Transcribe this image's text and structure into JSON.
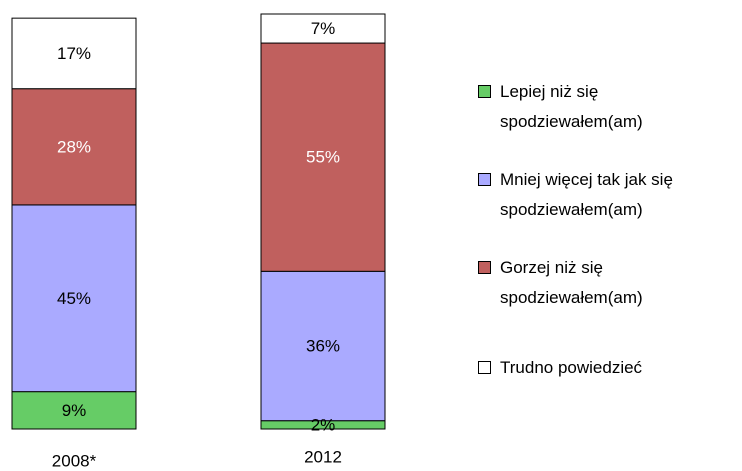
{
  "chart_data": {
    "type": "stacked_bar",
    "categories": [
      "2008*",
      "2012"
    ],
    "series": [
      {
        "name": "Lepiej niż się spodziewałem(am)",
        "color": "#66cc66",
        "label_color": "#000000",
        "values": [
          9,
          2
        ],
        "value_labels": [
          "9%",
          "2%"
        ]
      },
      {
        "name": "Mniej więcej tak jak się spodziewałem(am)",
        "color": "#aaaaff",
        "label_color": "#000000",
        "values": [
          45,
          36
        ],
        "value_labels": [
          "45%",
          "36%"
        ]
      },
      {
        "name": "Gorzej niż się spodziewałem(am)",
        "color": "#c0605e",
        "label_color": "#ffffff",
        "values": [
          28,
          55
        ],
        "value_labels": [
          "28%",
          "55%"
        ]
      },
      {
        "name": "Trudno powiedzieć",
        "color": "#ffffff",
        "label_color": "#000000",
        "values": [
          17,
          7
        ],
        "value_labels": [
          "17%",
          "7%"
        ]
      }
    ]
  }
}
